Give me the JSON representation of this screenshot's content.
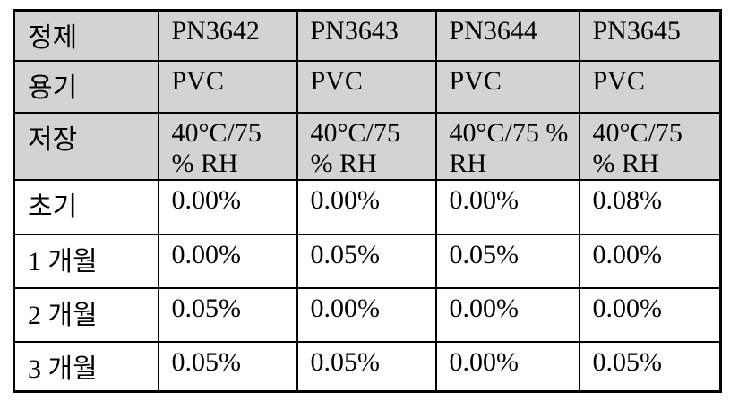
{
  "table": {
    "description_colors": {
      "header_background": "#d3d3d3",
      "body_background": "#ffffff",
      "border": "#000000",
      "text": "#000000"
    },
    "rows": [
      {
        "label": "정제",
        "header": true,
        "values": [
          "PN3642",
          "PN3643",
          "PN3644",
          "PN3645"
        ]
      },
      {
        "label": "용기",
        "header": true,
        "values": [
          "PVC",
          "PVC",
          "PVC",
          "PVC"
        ]
      },
      {
        "label": "저장",
        "header": true,
        "values": [
          "40°C/75 % RH",
          "40°C/75 % RH",
          "40°C/75 % RH",
          "40°C/75 % RH"
        ]
      },
      {
        "label": "초기",
        "header": false,
        "values": [
          "0.00%",
          "0.00%",
          "0.00%",
          "0.08%"
        ]
      },
      {
        "label": "1 개월",
        "header": false,
        "values": [
          "0.00%",
          "0.05%",
          "0.05%",
          "0.00%"
        ]
      },
      {
        "label": "2 개월",
        "header": false,
        "values": [
          "0.05%",
          "0.00%",
          "0.00%",
          "0.00%"
        ]
      },
      {
        "label": "3 개월",
        "header": false,
        "values": [
          "0.05%",
          "0.05%",
          "0.00%",
          "0.05%"
        ]
      }
    ]
  }
}
